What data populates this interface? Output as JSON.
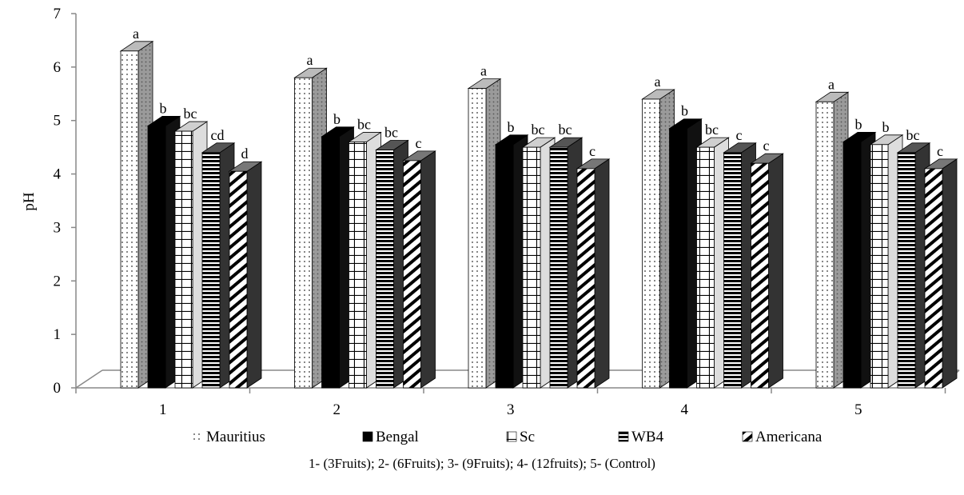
{
  "chart_data": {
    "type": "bar",
    "categories": [
      "1",
      "2",
      "3",
      "4",
      "5"
    ],
    "ylabel": "pH",
    "ylim": [
      0,
      7
    ],
    "yticks": [
      "0",
      "1",
      "2",
      "3",
      "4",
      "5",
      "6",
      "7"
    ],
    "legend_position": "bottom",
    "series": [
      {
        "name": "Mauritius",
        "pattern": "dots",
        "values": [
          6.3,
          5.8,
          5.6,
          5.4,
          5.35
        ],
        "letters": [
          "a",
          "a",
          "a",
          "a",
          "a"
        ]
      },
      {
        "name": "Bengal",
        "pattern": "solid",
        "color": "#000000",
        "values": [
          4.9,
          4.7,
          4.55,
          4.85,
          4.6
        ],
        "letters": [
          "b",
          "b",
          "b",
          "b",
          "b"
        ]
      },
      {
        "name": "Sc",
        "pattern": "grid",
        "values": [
          4.8,
          4.6,
          4.5,
          4.5,
          4.55
        ],
        "letters": [
          "bc",
          "bc",
          "bc",
          "bc",
          "b"
        ]
      },
      {
        "name": "WB4",
        "pattern": "horizontal-lines",
        "values": [
          4.4,
          4.45,
          4.5,
          4.4,
          4.4
        ],
        "letters": [
          "cd",
          "bc",
          "bc",
          "c",
          "bc"
        ]
      },
      {
        "name": "Americana",
        "pattern": "diagonal-lines",
        "values": [
          4.05,
          4.25,
          4.1,
          4.2,
          4.1
        ],
        "letters": [
          "d",
          "c",
          "c",
          "c",
          "c"
        ]
      }
    ],
    "caption": "1- (3Fruits); 2- (6Fruits); 3- (9Fruits); 4- (12fruits); 5- (Control)"
  }
}
